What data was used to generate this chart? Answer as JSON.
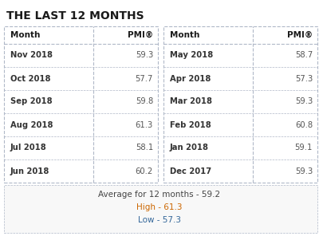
{
  "title": "THE LAST 12 MONTHS",
  "title_color": "#1a1a1a",
  "title_fontsize": 10,
  "left_table": {
    "months": [
      "Nov 2018",
      "Oct 2018",
      "Sep 2018",
      "Aug 2018",
      "Jul 2018",
      "Jun 2018"
    ],
    "pmi": [
      "59.3",
      "57.7",
      "59.8",
      "61.3",
      "58.1",
      "60.2"
    ],
    "bold_months": [
      0,
      1,
      2,
      3,
      4,
      5
    ]
  },
  "right_table": {
    "months": [
      "May 2018",
      "Apr 2018",
      "Mar 2018",
      "Feb 2018",
      "Jan 2018",
      "Dec 2017"
    ],
    "pmi": [
      "58.7",
      "57.3",
      "59.3",
      "60.8",
      "59.1",
      "59.3"
    ],
    "bold_months": [
      0,
      1,
      2,
      3,
      4,
      5
    ]
  },
  "header_month": "Month",
  "header_pmi": "PMI®",
  "summary_text": "Average for 12 months - 59.2",
  "high_text": "High - 61.3",
  "low_text": "Low - 57.3",
  "summary_color": "#444444",
  "high_color": "#cc6600",
  "low_color": "#336699",
  "bg_color": "#ffffff",
  "table_border_color": "#b0b8c8",
  "header_text_color": "#1a1a1a",
  "row_text_color": "#333333",
  "pmi_text_color": "#555555"
}
